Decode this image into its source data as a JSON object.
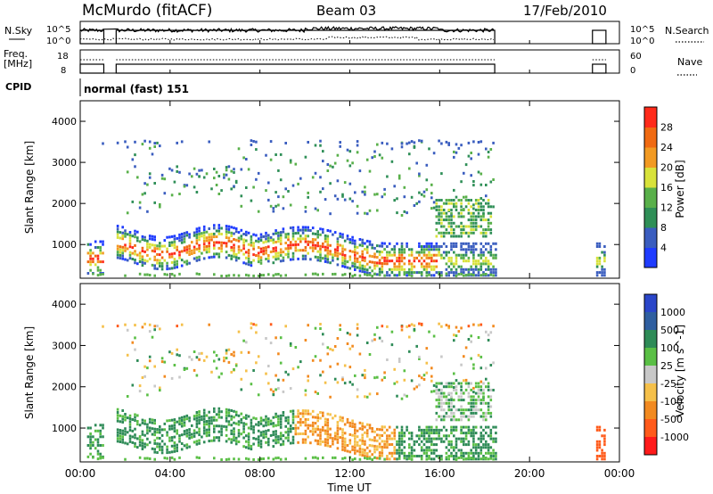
{
  "header": {
    "station": "McMurdo (fitACF)",
    "beam": "Beam 03",
    "date": "17/Feb/2010"
  },
  "left_labels": {
    "nsky": "N.Sky",
    "freq": "Freq.",
    "freq_unit": "[MHz]",
    "cpid": "CPID"
  },
  "right_labels": {
    "nsearch": "N.Search",
    "nave": "Nave"
  },
  "cpid_text": "normal (fast) 151",
  "noise_panel": {
    "left_ticks": [
      "10^5",
      "10^0"
    ],
    "right_ticks": [
      "10^5",
      "10^0"
    ]
  },
  "freq_panel": {
    "left_ticks": [
      "18",
      "8"
    ],
    "right_ticks": [
      "60",
      "0"
    ]
  },
  "colors": {
    "power": [
      "#1f3cff",
      "#3a5dbf",
      "#2f8f57",
      "#59b04a",
      "#d8e23a",
      "#f29a22",
      "#f06a12",
      "#ff2a1a"
    ],
    "velocity": [
      "#2a46c9",
      "#2f5fa0",
      "#2e8b57",
      "#5abf45",
      "#c8c8c8",
      "#f5c04a",
      "#f28a20",
      "#ff5a1a",
      "#ff1a1a"
    ]
  },
  "chart_data": [
    {
      "type": "heatmap",
      "panel": "power",
      "ylabel": "Slant Range [km]",
      "xlabel": "Time UT",
      "x_ticks": [
        "00:00",
        "04:00",
        "08:00",
        "12:00",
        "16:00",
        "20:00",
        "00:00"
      ],
      "x_range_hours": [
        0,
        24
      ],
      "y_ticks": [
        1000,
        2000,
        3000,
        4000
      ],
      "ylim": [
        180,
        4500
      ],
      "colorbar": {
        "label": "Power [dB]",
        "ticks": [
          "4",
          "8",
          "12",
          "16",
          "20",
          "24",
          "28"
        ]
      }
    },
    {
      "type": "heatmap",
      "panel": "velocity",
      "ylabel": "Slant Range [km]",
      "xlabel": "Time UT",
      "x_ticks": [
        "00:00",
        "04:00",
        "08:00",
        "12:00",
        "16:00",
        "20:00",
        "00:00"
      ],
      "x_range_hours": [
        0,
        24
      ],
      "y_ticks": [
        1000,
        2000,
        3000,
        4000
      ],
      "ylim": [
        180,
        4500
      ],
      "colorbar": {
        "label": "Velocity [m s^-1]",
        "ticks": [
          "1000",
          "500",
          "100",
          "25",
          "-25",
          "-100",
          "-500",
          "-1000"
        ]
      }
    }
  ]
}
